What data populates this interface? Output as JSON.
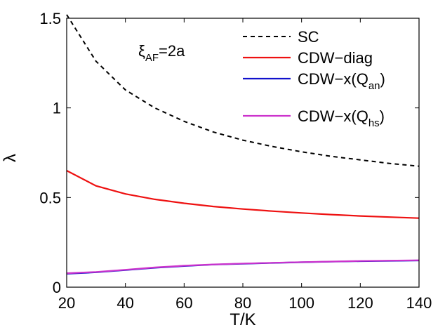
{
  "chart_data": {
    "type": "line",
    "xlabel": "T/K",
    "ylabel": "λ",
    "xlim": [
      20,
      140
    ],
    "ylim": [
      0,
      1.5
    ],
    "x_ticks": [
      20,
      40,
      60,
      80,
      100,
      120,
      140
    ],
    "y_ticks": [
      0,
      0.5,
      1,
      1.5
    ],
    "y_tick_labels": [
      "0",
      "0.5",
      "1",
      "1.5"
    ],
    "grid": false,
    "legend_position": "top-right",
    "annotation": {
      "main": "ξ",
      "sub": "AF",
      "rest": "=2a"
    },
    "series": [
      {
        "name": "SC",
        "color": "#000000",
        "dash": "dashed",
        "x": [
          20,
          30,
          40,
          50,
          60,
          70,
          80,
          90,
          100,
          110,
          120,
          130,
          140
        ],
        "y": [
          1.52,
          1.26,
          1.1,
          1.0,
          0.925,
          0.865,
          0.82,
          0.785,
          0.755,
          0.73,
          0.71,
          0.69,
          0.675
        ]
      },
      {
        "name": "CDW−diag",
        "color": "#ee1111",
        "dash": "solid",
        "x": [
          20,
          30,
          40,
          50,
          60,
          70,
          80,
          90,
          100,
          110,
          120,
          130,
          140
        ],
        "y": [
          0.65,
          0.565,
          0.52,
          0.49,
          0.468,
          0.45,
          0.436,
          0.424,
          0.414,
          0.405,
          0.397,
          0.391,
          0.385
        ]
      },
      {
        "name": "CDW−x(Q",
        "name_sub": "an",
        "name_tail": ")",
        "color": "#1111cc",
        "dash": "solid",
        "x": [
          20,
          30,
          40,
          50,
          60,
          70,
          80,
          90,
          100,
          110,
          120,
          130,
          140
        ],
        "y": [
          0.075,
          0.083,
          0.095,
          0.108,
          0.118,
          0.126,
          0.131,
          0.135,
          0.139,
          0.142,
          0.145,
          0.147,
          0.149
        ]
      },
      {
        "name": "CDW−x(Q",
        "name_sub": "hs",
        "name_tail": ")",
        "color": "#cc33cc",
        "dash": "solid",
        "x": [
          20,
          30,
          40,
          50,
          60,
          70,
          80,
          90,
          100,
          110,
          120,
          130,
          140
        ],
        "y": [
          0.078,
          0.085,
          0.097,
          0.11,
          0.12,
          0.127,
          0.132,
          0.136,
          0.14,
          0.143,
          0.146,
          0.148,
          0.15
        ]
      }
    ]
  }
}
